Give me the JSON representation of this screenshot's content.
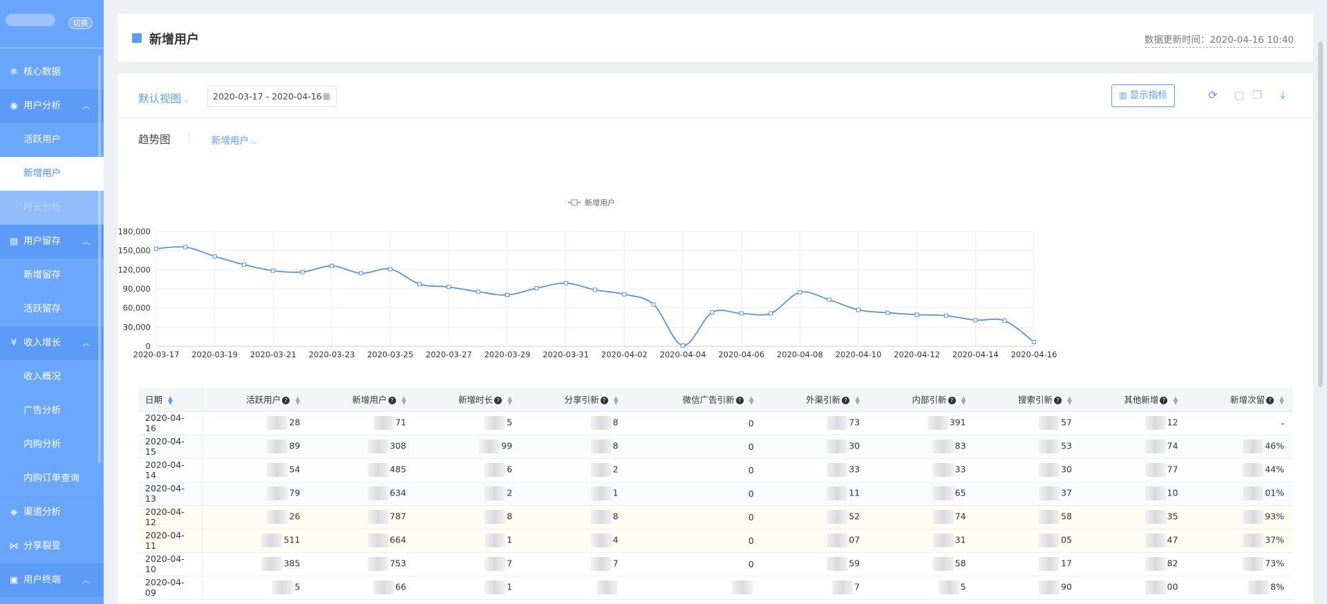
{
  "sidebar": {
    "switch_label": "切换",
    "items": [
      {
        "type": "group",
        "label": "核心数据",
        "icon": "snowflake-icon",
        "glyph": "❄",
        "open": false
      },
      {
        "type": "group",
        "label": "用户分析",
        "icon": "user-circle-icon",
        "glyph": "◉",
        "open": true
      },
      {
        "type": "sub",
        "label": "活跃用户"
      },
      {
        "type": "sub",
        "label": "新增用户",
        "active": true
      },
      {
        "type": "sub",
        "label": "时长分析",
        "faded": true
      },
      {
        "type": "group",
        "label": "用户留存",
        "icon": "book-icon",
        "glyph": "▤",
        "open": true
      },
      {
        "type": "sub",
        "label": "新增留存"
      },
      {
        "type": "sub",
        "label": "活跃留存"
      },
      {
        "type": "group",
        "label": "收入增长",
        "icon": "yen-circle-icon",
        "glyph": "¥",
        "open": true
      },
      {
        "type": "sub",
        "label": "收入概况"
      },
      {
        "type": "sub",
        "label": "广告分析"
      },
      {
        "type": "sub",
        "label": "内购分析"
      },
      {
        "type": "sub",
        "label": "内购订单查询"
      },
      {
        "type": "group",
        "label": "渠道分析",
        "icon": "diamond-icon",
        "glyph": "◈",
        "open": false
      },
      {
        "type": "group",
        "label": "分享裂变",
        "icon": "share-icon",
        "glyph": "⋈",
        "open": false
      },
      {
        "type": "group",
        "label": "用户终端",
        "icon": "terminal-icon",
        "glyph": "▣",
        "open": true
      }
    ]
  },
  "header": {
    "title": "新增用户",
    "update_time": "数据更新时间：2020-04-16 10:40"
  },
  "toolbar": {
    "view_label": "默认视图",
    "date_range": "2020-03-17 - 2020-04-16",
    "metric_button": "显示指标",
    "icons": [
      "refresh-icon",
      "save-icon",
      "copy-icon",
      "download-icon"
    ]
  },
  "chart_section": {
    "title": "趋势图",
    "metric_select": "新增用户"
  },
  "colors": {
    "accent": "#5c9bf7",
    "sidebar": "#69a6fb",
    "line": "#5b93db"
  },
  "chart_data": {
    "type": "line",
    "legend": "新增用户",
    "legend_position": "top-center",
    "grid": true,
    "ylim": [
      0,
      180000
    ],
    "yticks": [
      "0",
      "30,000",
      "60,000",
      "90,000",
      "120,000",
      "150,000",
      "180,000"
    ],
    "xticks": [
      "2020-03-17",
      "2020-03-19",
      "2020-03-21",
      "2020-03-23",
      "2020-03-25",
      "2020-03-27",
      "2020-03-29",
      "2020-03-31",
      "2020-04-02",
      "2020-04-04",
      "2020-04-06",
      "2020-04-08",
      "2020-04-10",
      "2020-04-12",
      "2020-04-14",
      "2020-04-16"
    ],
    "x": [
      "2020-03-17",
      "2020-03-18",
      "2020-03-19",
      "2020-03-20",
      "2020-03-21",
      "2020-03-22",
      "2020-03-23",
      "2020-03-24",
      "2020-03-25",
      "2020-03-26",
      "2020-03-27",
      "2020-03-28",
      "2020-03-29",
      "2020-03-30",
      "2020-03-31",
      "2020-04-01",
      "2020-04-02",
      "2020-04-03",
      "2020-04-04",
      "2020-04-05",
      "2020-04-06",
      "2020-04-07",
      "2020-04-08",
      "2020-04-09",
      "2020-04-10",
      "2020-04-11",
      "2020-04-12",
      "2020-04-13",
      "2020-04-14",
      "2020-04-15",
      "2020-04-16"
    ],
    "series": [
      {
        "name": "新增用户",
        "values": [
          153000,
          155500,
          141000,
          128000,
          118500,
          116500,
          126000,
          114500,
          121000,
          97500,
          93000,
          85500,
          80500,
          91000,
          99000,
          88500,
          81500,
          65500,
          1000,
          53000,
          51500,
          51500,
          84500,
          73000,
          57000,
          52500,
          49500,
          48000,
          41000,
          40000,
          6500
        ]
      }
    ]
  },
  "table": {
    "headers": [
      {
        "label": "日期",
        "help": false,
        "sort": "blue"
      },
      {
        "label": "活跃用户",
        "help": true
      },
      {
        "label": "新增用户",
        "help": true
      },
      {
        "label": "新增时长",
        "help": true
      },
      {
        "label": "分享引新",
        "help": true
      },
      {
        "label": "微信广告引新",
        "help": true
      },
      {
        "label": "外渠引新",
        "help": true
      },
      {
        "label": "内部引新",
        "help": true
      },
      {
        "label": "搜索引新",
        "help": true
      },
      {
        "label": "其他新增",
        "help": true
      },
      {
        "label": "新增次留",
        "help": true
      }
    ],
    "rows": [
      {
        "style": "",
        "cells": [
          "2020-04-16",
          "28",
          "71",
          "5",
          "8",
          "0",
          "73",
          "391",
          "57",
          "12",
          "-"
        ]
      },
      {
        "style": "alt",
        "cells": [
          "2020-04-15",
          "89",
          "308",
          "99",
          "8",
          "0",
          "30",
          "83",
          "53",
          "74",
          "46%"
        ]
      },
      {
        "style": "",
        "cells": [
          "2020-04-14",
          "54",
          "485",
          "6",
          "2",
          "0",
          "33",
          "33",
          "30",
          "77",
          "44%"
        ]
      },
      {
        "style": "alt",
        "cells": [
          "2020-04-13",
          "79",
          "634",
          "2",
          "1",
          "0",
          "11",
          "65",
          "37",
          "10",
          "01%"
        ]
      },
      {
        "style": "hl",
        "cells": [
          "2020-04-12",
          "26",
          "787",
          "8",
          "8",
          "0",
          "52",
          "74",
          "58",
          "35",
          "93%"
        ]
      },
      {
        "style": "hl",
        "cells": [
          "2020-04-11",
          "511",
          "664",
          "1",
          "4",
          "0",
          "07",
          "31",
          "05",
          "47",
          "37%"
        ]
      },
      {
        "style": "",
        "cells": [
          "2020-04-10",
          "385",
          "753",
          "7",
          "7",
          "0",
          "59",
          "58",
          "17",
          "82",
          "73%"
        ]
      },
      {
        "style": "",
        "cells": [
          "2020-04-09",
          "5",
          "66",
          "1",
          "",
          "",
          "7",
          "5",
          "90",
          "00",
          "8%"
        ]
      }
    ]
  }
}
